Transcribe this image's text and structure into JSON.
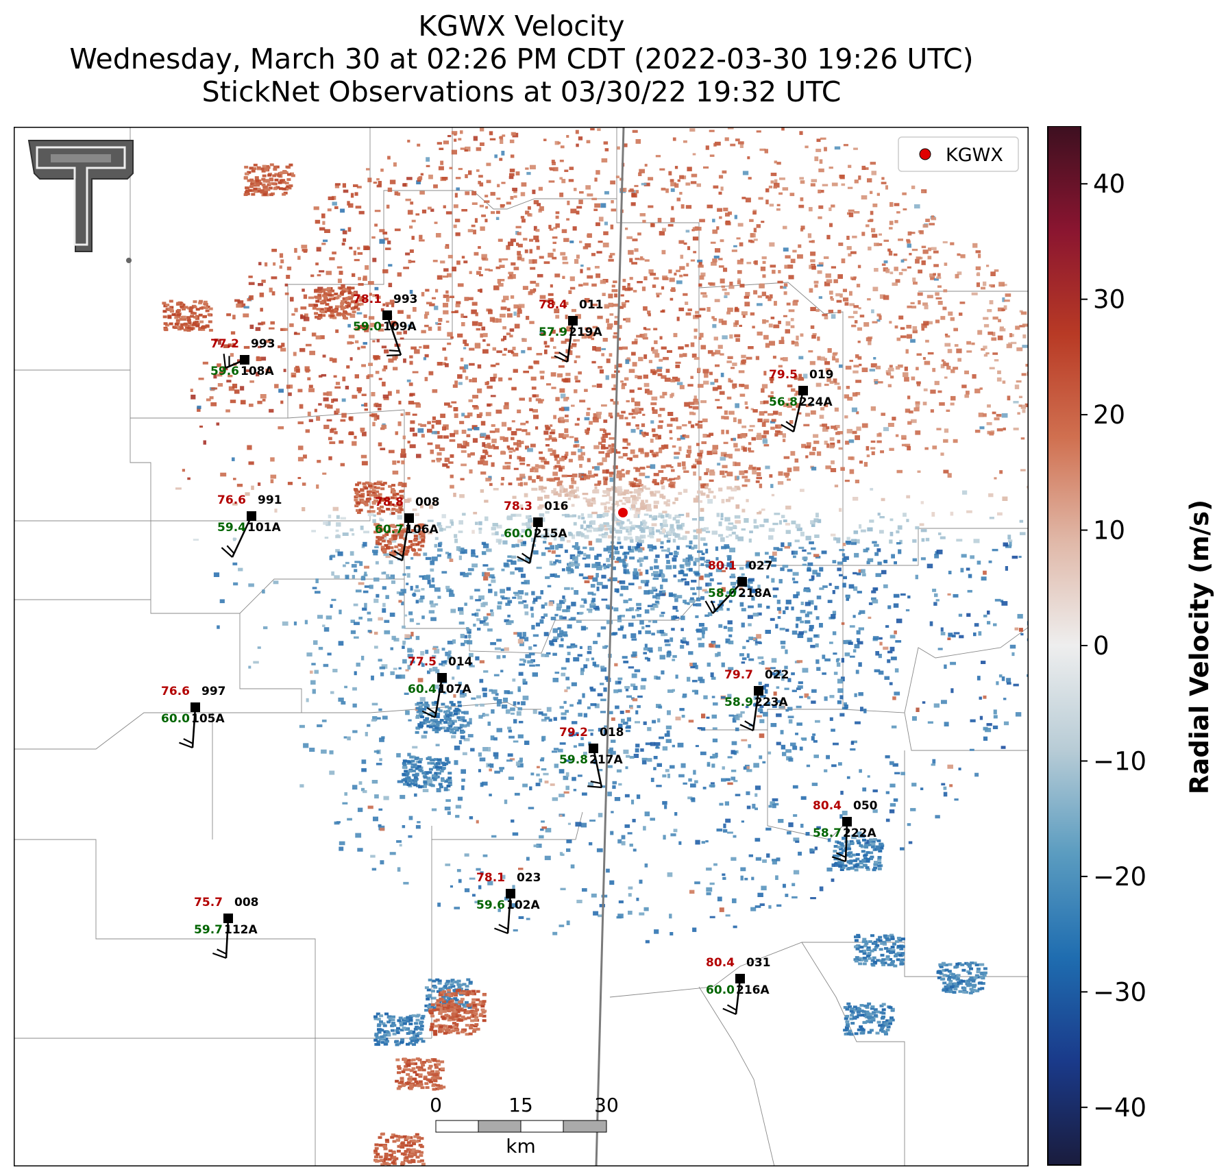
{
  "title": {
    "line1": "KGWX Velocity",
    "line2": "Wednesday, March 30 at 02:26 PM CDT (2022-03-30 19:26 UTC)",
    "line3": "StickNet Observations at 03/30/22 19:32 UTC"
  },
  "legend": {
    "label": "KGWX",
    "marker_color": "#e00000"
  },
  "radar_site": {
    "name": "KGWX"
  },
  "logo": {
    "name": "texas-tech-double-t-logo"
  },
  "colorbar": {
    "label": "Radial Velocity (m/s)",
    "range": [
      -45,
      45
    ],
    "ticks": [
      40,
      30,
      20,
      10,
      0,
      -10,
      -20,
      -30,
      -40
    ],
    "tick_labels": [
      "40",
      "30",
      "20",
      "10",
      "0",
      "−10",
      "−20",
      "−30",
      "−40"
    ],
    "colors": [
      "#1a1c3d",
      "#1a3a8a",
      "#1f6db0",
      "#5b9cc0",
      "#b8ccd6",
      "#eeeeee",
      "#e0b8a8",
      "#d07050",
      "#b83a25",
      "#8a1530",
      "#3d1020"
    ]
  },
  "scalebar": {
    "ticks": [
      "0",
      "15",
      "30"
    ],
    "unit": "km"
  },
  "stations": [
    {
      "id": "108A",
      "temp": "77.2",
      "dew": "59.6",
      "pres": "993"
    },
    {
      "id": "109A",
      "temp": "78.1",
      "dew": "59.0",
      "pres": "993"
    },
    {
      "id": "219A",
      "temp": "78.4",
      "dew": "57.9",
      "pres": "011"
    },
    {
      "id": "224A",
      "temp": "79.5",
      "dew": "56.8",
      "pres": "019"
    },
    {
      "id": "101A",
      "temp": "76.6",
      "dew": "59.4",
      "pres": "991"
    },
    {
      "id": "106A",
      "temp": "78.8",
      "dew": "60.7",
      "pres": "008"
    },
    {
      "id": "215A",
      "temp": "78.3",
      "dew": "60.0",
      "pres": "016"
    },
    {
      "id": "218A",
      "temp": "80.1",
      "dew": "58.0",
      "pres": "027"
    },
    {
      "id": "107A",
      "temp": "77.5",
      "dew": "60.4",
      "pres": "014"
    },
    {
      "id": "105A",
      "temp": "76.6",
      "dew": "60.0",
      "pres": "997"
    },
    {
      "id": "223A",
      "temp": "79.7",
      "dew": "58.9",
      "pres": "022"
    },
    {
      "id": "217A",
      "temp": "79.2",
      "dew": "59.8",
      "pres": "018"
    },
    {
      "id": "222A",
      "temp": "80.4",
      "dew": "58.7",
      "pres": "050"
    },
    {
      "id": "102A",
      "temp": "78.1",
      "dew": "59.6",
      "pres": "023"
    },
    {
      "id": "112A",
      "temp": "75.7",
      "dew": "59.7",
      "pres": "008"
    },
    {
      "id": "216A",
      "temp": "80.4",
      "dew": "60.0",
      "pres": "031"
    }
  ]
}
